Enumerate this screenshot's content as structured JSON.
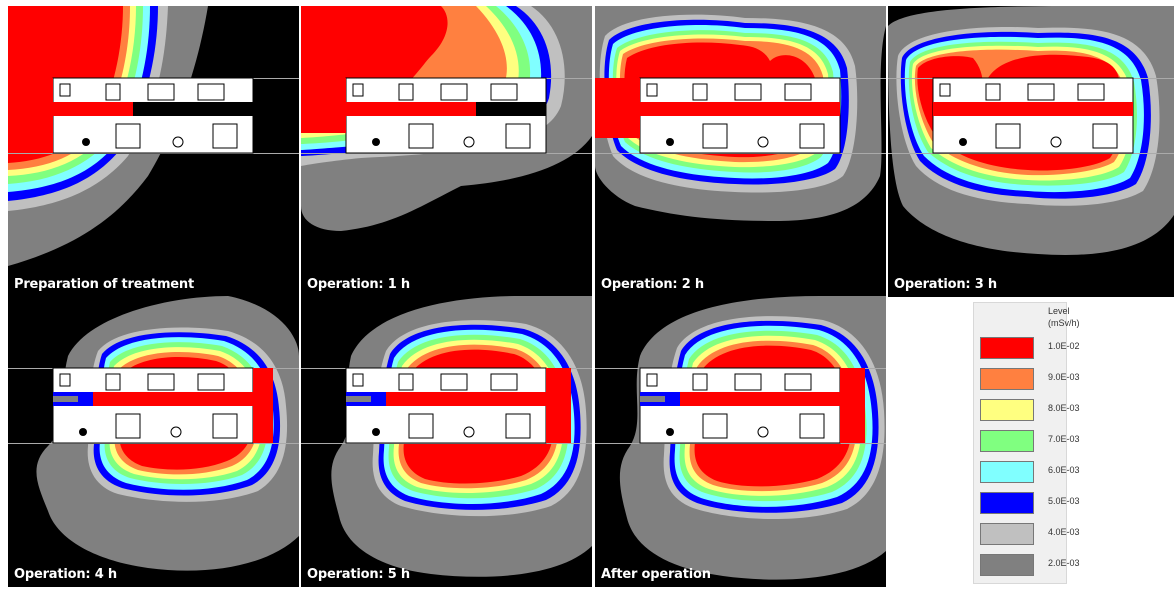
{
  "panels": [
    {
      "caption": "Preparation of treatment"
    },
    {
      "caption": "Operation: 1 h"
    },
    {
      "caption": "Operation: 2 h"
    },
    {
      "caption": "Operation: 3 h"
    },
    {
      "caption": "Operation: 4 h"
    },
    {
      "caption": "Operation: 5 h"
    },
    {
      "caption": "After operation"
    }
  ],
  "legend": {
    "title_line1": "Level",
    "title_line2": "(mSv/h)",
    "items": [
      {
        "label": "1.0E-02",
        "color": "#ff0000"
      },
      {
        "label": "9.0E-03",
        "color": "#ff8040"
      },
      {
        "label": "8.0E-03",
        "color": "#ffff80"
      },
      {
        "label": "7.0E-03",
        "color": "#80ff80"
      },
      {
        "label": "6.0E-03",
        "color": "#80ffff"
      },
      {
        "label": "5.0E-03",
        "color": "#0000ff"
      },
      {
        "label": "4.0E-03",
        "color": "#c0c0c0"
      },
      {
        "label": "2.0E-03",
        "color": "#808080"
      }
    ]
  }
}
